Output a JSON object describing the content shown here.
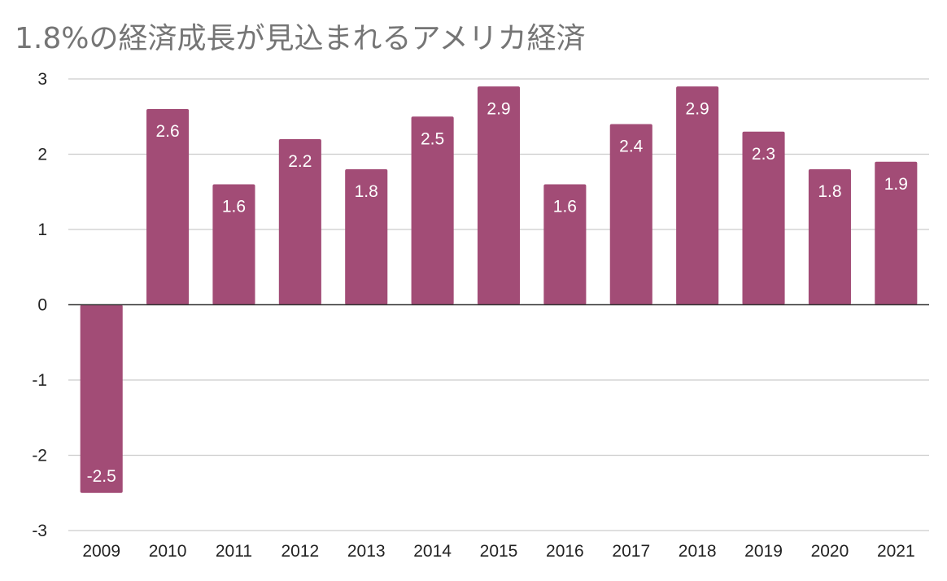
{
  "chart_data": {
    "type": "bar",
    "title": "1.8%の経済成長が見込まれるアメリカ経済",
    "xlabel": "",
    "ylabel": "",
    "categories": [
      "2009",
      "2010",
      "2011",
      "2012",
      "2013",
      "2014",
      "2015",
      "2016",
      "2017",
      "2018",
      "2019",
      "2020",
      "2021"
    ],
    "values": [
      -2.5,
      2.6,
      1.6,
      2.2,
      1.8,
      2.5,
      2.9,
      1.6,
      2.4,
      2.9,
      2.3,
      1.8,
      1.9
    ],
    "data_labels": [
      "-2.5",
      "2.6",
      "1.6",
      "2.2",
      "1.8",
      "2.5",
      "2.9",
      "1.6",
      "2.4",
      "2.9",
      "2.3",
      "1.8",
      "1.9"
    ],
    "ylim": [
      -3,
      3
    ],
    "yticks": [
      3,
      2,
      1,
      0,
      -1,
      -2,
      -3
    ],
    "grid": true,
    "legend": "none",
    "colors": {
      "bar": "#a24c76",
      "grid": "#cccccc",
      "zero_line": "#333333",
      "title": "#757575"
    }
  }
}
